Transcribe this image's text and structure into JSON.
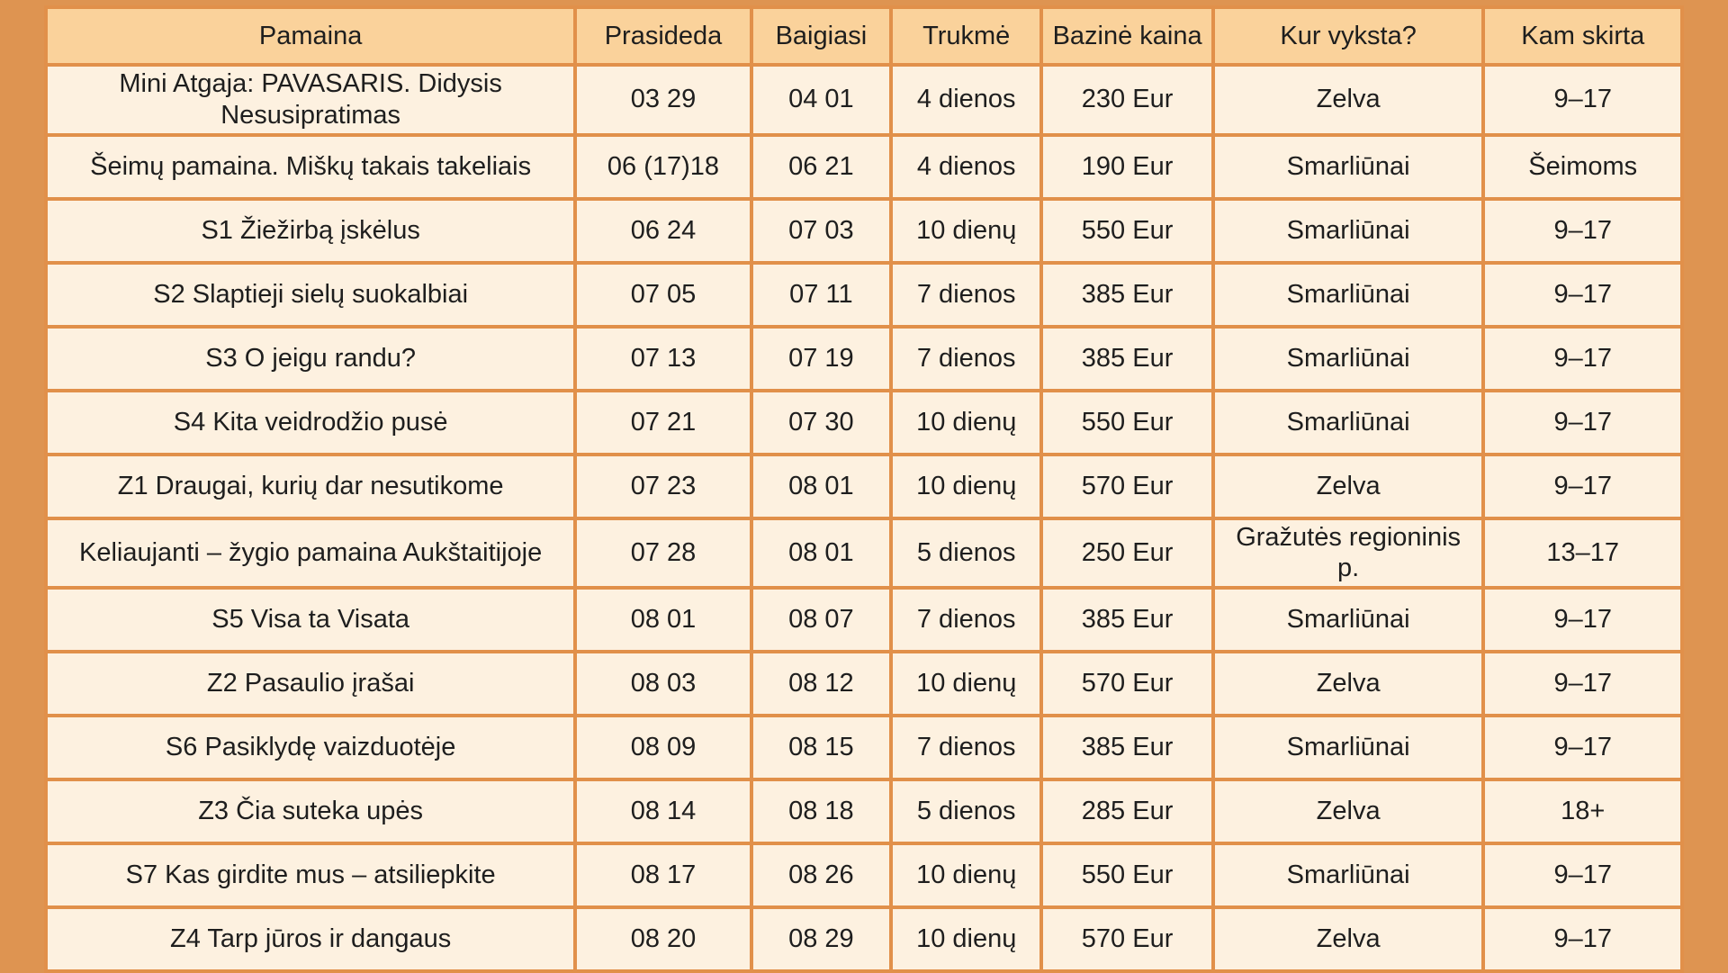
{
  "colors": {
    "page_bg": "#de9451",
    "border": "#e1904a",
    "header_bg": "#fad29b",
    "cell_bg": "#fdf1e0",
    "text": "#1e1e1e"
  },
  "table": {
    "columns": [
      "Pamaina",
      "Prasideda",
      "Baigiasi",
      "Trukmė",
      "Bazinė kaina",
      "Kur vyksta?",
      "Kam skirta"
    ],
    "rows": [
      [
        "Mini Atgaja: PAVASARIS. Didysis Nesusipratimas",
        "03 29",
        "04 01",
        "4 dienos",
        "230 Eur",
        "Zelva",
        "9–17"
      ],
      [
        "Šeimų pamaina. Miškų takais takeliais",
        "06 (17)18",
        "06 21",
        "4 dienos",
        "190 Eur",
        "Smarliūnai",
        "Šeimoms"
      ],
      [
        "S1 Žiežirbą įskėlus",
        "06 24",
        "07 03",
        "10 dienų",
        "550 Eur",
        "Smarliūnai",
        "9–17"
      ],
      [
        "S2 Slaptieji sielų suokalbiai",
        "07 05",
        "07 11",
        "7 dienos",
        "385 Eur",
        "Smarliūnai",
        "9–17"
      ],
      [
        "S3 O jeigu randu?",
        "07 13",
        "07 19",
        "7 dienos",
        "385 Eur",
        "Smarliūnai",
        "9–17"
      ],
      [
        "S4 Kita veidrodžio pusė",
        "07 21",
        "07 30",
        "10 dienų",
        "550 Eur",
        "Smarliūnai",
        "9–17"
      ],
      [
        "Z1 Draugai, kurių dar nesutikome",
        "07 23",
        "08 01",
        "10 dienų",
        "570 Eur",
        "Zelva",
        "9–17"
      ],
      [
        "Keliaujanti – žygio pamaina Aukštaitijoje",
        "07 28",
        "08 01",
        "5 dienos",
        "250 Eur",
        "Gražutės regioninis p.",
        "13–17"
      ],
      [
        "S5 Visa ta Visata",
        "08 01",
        "08 07",
        "7 dienos",
        "385 Eur",
        "Smarliūnai",
        "9–17"
      ],
      [
        "Z2 Pasaulio įrašai",
        "08 03",
        "08 12",
        "10 dienų",
        "570 Eur",
        "Zelva",
        "9–17"
      ],
      [
        "S6 Pasiklydę vaizduotėje",
        "08 09",
        "08 15",
        "7 dienos",
        "385 Eur",
        "Smarliūnai",
        "9–17"
      ],
      [
        "Z3 Čia suteka upės",
        "08 14",
        "08 18",
        "5 dienos",
        "285 Eur",
        "Zelva",
        "18+"
      ],
      [
        "S7 Kas girdite mus – atsiliepkite",
        "08 17",
        "08 26",
        "10 dienų",
        "550 Eur",
        "Smarliūnai",
        "9–17"
      ],
      [
        "Z4 Tarp jūros ir dangaus",
        "08 20",
        "08 29",
        "10 dienų",
        "570 Eur",
        "Zelva",
        "9–17"
      ]
    ]
  }
}
